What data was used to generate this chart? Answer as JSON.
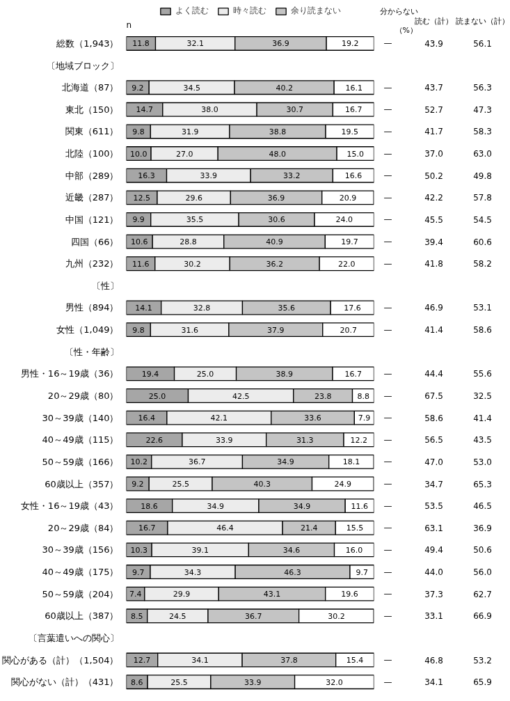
{
  "chart_data": {
    "type": "bar",
    "orientation": "horizontal",
    "stacked": true,
    "data_labels": true,
    "legend": "top",
    "grid": false,
    "tick_labels": "y",
    "xlim": [
      0,
      100
    ],
    "categories": [
      "総数（1,943）",
      "〔地域ブロック〕",
      "北海道（87）",
      "東北（150）",
      "関東（611）",
      "北陸（100）",
      "中部（289）",
      "近畿（287）",
      "中国（121）",
      "四国（66）",
      "九州（232）",
      "〔性〕",
      "男性（894）",
      "女性（1,049）",
      "〔性・年齢〕",
      "男性・16～19歳（36）",
      "20～29歳（80）",
      "30～39歳（140）",
      "40～49歳（115）",
      "50～59歳（166）",
      "60歳以上（357）",
      "女性・16～19歳（43）",
      "20～29歳（84）",
      "30～39歳（156）",
      "40～49歳（175）",
      "50～59歳（204）",
      "60歳以上（387）",
      "〔言葉遣いへの関心〕",
      "関心がある（計）（1,504）",
      "関心がない（計）（431）"
    ],
    "series": [
      {
        "name": "よく読む",
        "color": "#a6a6a6",
        "values": [
          11.8,
          null,
          9.2,
          14.7,
          9.8,
          10.0,
          16.3,
          12.5,
          9.9,
          10.6,
          11.6,
          null,
          14.1,
          9.8,
          null,
          19.4,
          25.0,
          16.4,
          22.6,
          10.2,
          9.2,
          18.6,
          16.7,
          10.3,
          9.7,
          7.4,
          8.5,
          null,
          12.7,
          8.6
        ],
        "value_labels": [
          "11.8",
          null,
          "9.2",
          "14.7",
          "9.8",
          "10.0",
          "16.3",
          "12.5",
          "9.9",
          "10.6",
          "11.6",
          null,
          "14.1",
          "9.8",
          null,
          "19.4",
          "25.0",
          "16.4",
          "22.6",
          "10.2",
          "9.2",
          "18.6",
          "16.7",
          "10.3",
          "9.7",
          "7.4",
          "8.5",
          null,
          "12.7",
          "8.6"
        ]
      },
      {
        "name": "時々読む",
        "color": "#ececec",
        "values": [
          32.1,
          null,
          34.5,
          38.0,
          31.9,
          27.0,
          33.9,
          29.6,
          35.5,
          28.8,
          30.2,
          null,
          32.8,
          31.6,
          null,
          25.0,
          42.5,
          42.1,
          33.9,
          36.7,
          25.5,
          34.9,
          46.4,
          39.1,
          34.3,
          29.9,
          24.5,
          null,
          34.1,
          25.5
        ],
        "value_labels": [
          "32.1",
          null,
          "34.5",
          "38.0",
          "31.9",
          "27.0",
          "33.9",
          "29.6",
          "35.5",
          "28.8",
          "30.2",
          null,
          "32.8",
          "31.6",
          null,
          "25.0",
          "42.5",
          "42.1",
          "33.9",
          "36.7",
          "25.5",
          "34.9",
          "46.4",
          "39.1",
          "34.3",
          "29.9",
          "24.5",
          null,
          "34.1",
          "25.5"
        ]
      },
      {
        "name": "余り読まない",
        "color": "#c4c4c4",
        "values": [
          36.9,
          null,
          40.2,
          30.7,
          38.8,
          48.0,
          33.2,
          36.9,
          30.6,
          40.9,
          36.2,
          null,
          35.6,
          37.9,
          null,
          38.9,
          23.8,
          33.6,
          31.3,
          34.9,
          40.3,
          34.9,
          21.4,
          34.6,
          46.3,
          43.1,
          36.7,
          null,
          37.8,
          33.9
        ],
        "value_labels": [
          "36.9",
          null,
          "40.2",
          "30.7",
          "38.8",
          "48.0",
          "33.2",
          "36.9",
          "30.6",
          "40.9",
          "36.2",
          null,
          "35.6",
          "37.9",
          null,
          "38.9",
          "23.8",
          "33.6",
          "31.3",
          "34.9",
          "40.3",
          "34.9",
          "21.4",
          "34.6",
          "46.3",
          "43.1",
          "36.7",
          null,
          "37.8",
          "33.9"
        ]
      },
      {
        "color": "#ffffff",
        "values": [
          19.2,
          null,
          16.1,
          16.7,
          19.5,
          15.0,
          16.6,
          20.9,
          24.0,
          19.7,
          22.0,
          null,
          17.6,
          20.7,
          null,
          16.7,
          8.8,
          7.9,
          12.2,
          18.1,
          24.9,
          11.6,
          15.5,
          16.0,
          9.7,
          19.6,
          30.2,
          null,
          15.4,
          32.0
        ],
        "value_labels": [
          "19.2",
          null,
          "16.1",
          "16.7",
          "19.5",
          "15.0",
          "16.6",
          "20.9",
          "24.0",
          "19.7",
          "22.0",
          null,
          "17.6",
          "20.7",
          null,
          "16.7",
          "8.8",
          "7.9",
          "12.2",
          "18.1",
          "24.9",
          "11.6",
          "15.5",
          "16.0",
          "9.7",
          "19.6",
          "30.2",
          null,
          "15.4",
          "32.0"
        ]
      },
      {
        "name": "分からない",
        "color": "#000000",
        "values": [
          0,
          null,
          0,
          0,
          0,
          0,
          0,
          0,
          0,
          0,
          0,
          null,
          0,
          0,
          null,
          0,
          0,
          0,
          0,
          0,
          0,
          0,
          0,
          0,
          0,
          0,
          0,
          null,
          0,
          0
        ],
        "value_labels": [
          "—",
          null,
          "—",
          "—",
          "—",
          "—",
          "—",
          "—",
          "—",
          "—",
          "—",
          null,
          "—",
          "—",
          null,
          "—",
          "—",
          "—",
          "—",
          "—",
          "—",
          "—",
          "—",
          "—",
          "—",
          "—",
          "—",
          null,
          "—",
          "—"
        ]
      }
    ],
    "annotations": [
      "n",
      "（%）",
      "読む（計）",
      "読まない（計）",
      "43.9",
      "56.1",
      "43.7",
      "56.3",
      "52.7",
      "47.3",
      "41.7",
      "58.3",
      "37.0",
      "63.0",
      "50.2",
      "49.8",
      "42.2",
      "57.8",
      "45.5",
      "54.5",
      "39.4",
      "60.6",
      "41.8",
      "58.2",
      "46.9",
      "53.1",
      "41.4",
      "58.6",
      "44.4",
      "55.6",
      "67.5",
      "32.5",
      "58.6",
      "41.4",
      "56.5",
      "43.5",
      "47.0",
      "53.0",
      "34.7",
      "65.3",
      "53.5",
      "46.5",
      "63.1",
      "36.9",
      "49.4",
      "50.6",
      "44.0",
      "56.0",
      "37.3",
      "62.7",
      "33.1",
      "66.9",
      "46.8",
      "53.2",
      "34.1",
      "65.9"
    ]
  }
}
